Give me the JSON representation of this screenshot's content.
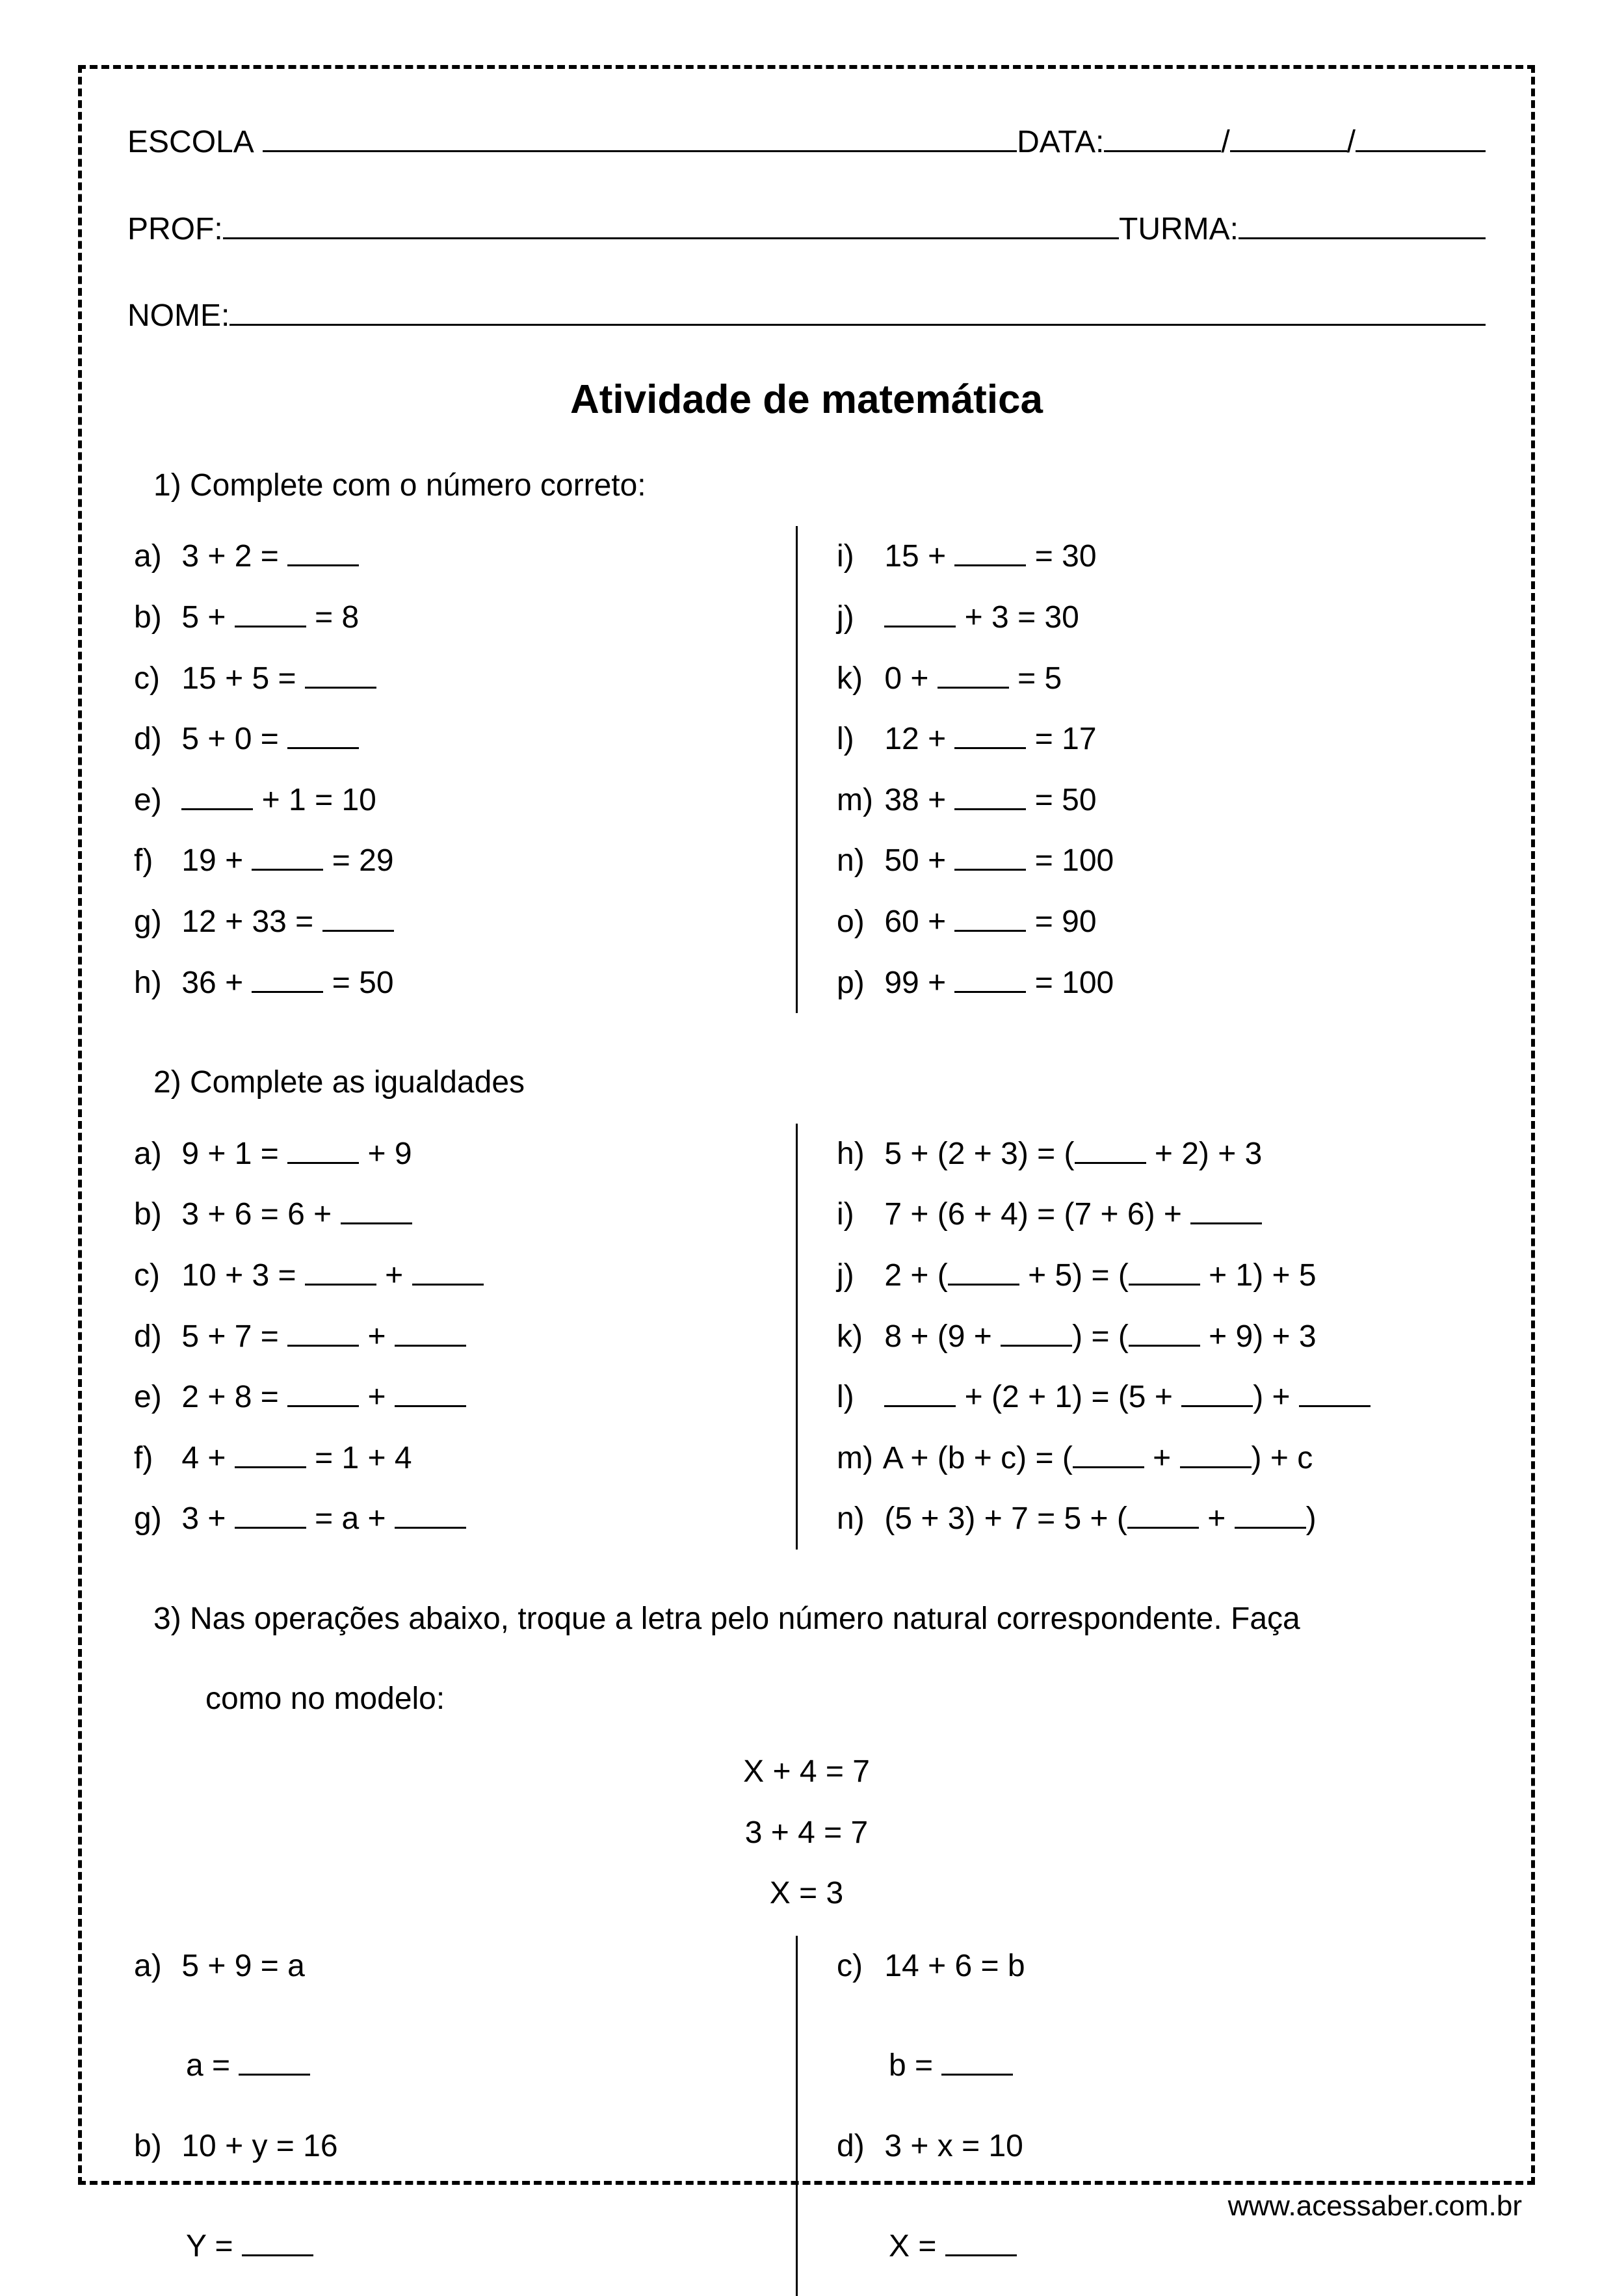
{
  "header": {
    "escola": "ESCOLA",
    "data": "DATA:",
    "prof": "PROF:",
    "turma": "TURMA:",
    "nome": "NOME:",
    "slash": "/"
  },
  "title": "Atividade de matemática",
  "q1": {
    "prompt": "1) Complete com o número correto:",
    "left": [
      {
        "label": "a)",
        "expr": "3 + 2 = ____"
      },
      {
        "label": "b)",
        "expr": "5 + ____ = 8"
      },
      {
        "label": "c)",
        "expr": "15 + 5 = ____"
      },
      {
        "label": "d)",
        "expr": "5 + 0 = ____"
      },
      {
        "label": "e)",
        "expr": "____ + 1 = 10"
      },
      {
        "label": "f)",
        "expr": "19 + ____ = 29"
      },
      {
        "label": "g)",
        "expr": "12 + 33 = ____"
      },
      {
        "label": "h)",
        "expr": "36 + ____ = 50"
      }
    ],
    "right": [
      {
        "label": "i)",
        "expr": "15 + ____ = 30"
      },
      {
        "label": "j)",
        "expr": "____ + 3 = 30"
      },
      {
        "label": "k)",
        "expr": "0 + ____ = 5"
      },
      {
        "label": "l)",
        "expr": "12 + ____ = 17"
      },
      {
        "label": "m)",
        "expr": "38 + ____ = 50"
      },
      {
        "label": "n)",
        "expr": "50 + ____ = 100"
      },
      {
        "label": "o)",
        "expr": "60 + ____ = 90"
      },
      {
        "label": "p)",
        "expr": "99 + ____ = 100"
      }
    ]
  },
  "q2": {
    "prompt": "2) Complete as igualdades",
    "left": [
      {
        "label": "a)",
        "expr": "9 + 1 = ____ + 9"
      },
      {
        "label": "b)",
        "expr": "3 + 6 = 6 + ____"
      },
      {
        "label": "c)",
        "expr": "10 + 3 = ____ + ____"
      },
      {
        "label": "d)",
        "expr": "5 + 7 = ____ + ____"
      },
      {
        "label": "e)",
        "expr": "2 + 8 = ____ + ____"
      },
      {
        "label": "f)",
        "expr": "4 + ____ = 1 + 4"
      },
      {
        "label": "g)",
        "expr": "3 + ____ = a + ____"
      }
    ],
    "right": [
      {
        "label": "h)",
        "expr": "5 + (2 + 3) = (____ + 2) + 3"
      },
      {
        "label": "i)",
        "expr": "7 + (6 + 4) = (7 + 6) + ____"
      },
      {
        "label": "j)",
        "expr": "2 + (____ + 5) = (____ + 1) + 5"
      },
      {
        "label": "k)",
        "expr": "8 + (9 + ____) = (____ + 9) + 3"
      },
      {
        "label": "l)",
        "expr": "____ + (2 + 1) = (5 + ____) + ____"
      },
      {
        "label": "m)",
        "expr": "A + (b + c) = (____ + ____) + c"
      },
      {
        "label": "n)",
        "expr": "(5 + 3) + 7 = 5 + (____ + ____)"
      }
    ]
  },
  "q3": {
    "prompt_line1": "3) Nas operações abaixo, troque a letra pelo número natural correspondente. Faça",
    "prompt_line2": "como no modelo:",
    "model": [
      "X + 4 = 7",
      "3 + 4 = 7",
      "X = 3"
    ],
    "left": [
      {
        "label": "a)",
        "expr": "5 + 9 = a",
        "ans": "a = ____"
      },
      {
        "label": "b)",
        "expr": "10 + y = 16",
        "ans": "Y = ____"
      }
    ],
    "right": [
      {
        "label": "c)",
        "expr": "14 + 6 = b",
        "ans": "b = ____"
      },
      {
        "label": "d)",
        "expr": "3 + x = 10",
        "ans": "X = ____"
      }
    ]
  },
  "footer": "www.acessaber.com.br"
}
